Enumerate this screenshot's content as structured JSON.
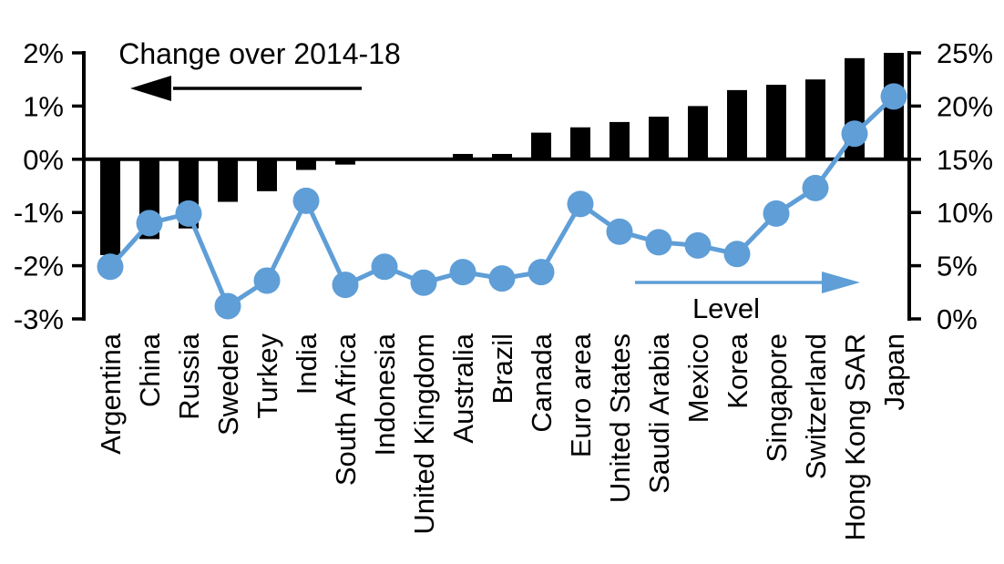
{
  "chart_data": {
    "type": "bar",
    "subtype": "combo-bar-line-dual-axis",
    "background": "#ffffff",
    "categories": [
      "Argentina",
      "China",
      "Russia",
      "Sweden",
      "Turkey",
      "India",
      "South Africa",
      "Indonesia",
      "United Kingdom",
      "Australia",
      "Brazil",
      "Canada",
      "Euro area",
      "United States",
      "Saudi Arabia",
      "Mexico",
      "Korea",
      "Singapore",
      "Switzerland",
      "Hong Kong SAR",
      "Japan"
    ],
    "series": [
      {
        "name": "Change over 2014-18",
        "type": "bar",
        "axis": "left",
        "color": "#000000",
        "values": [
          -1.8,
          -1.5,
          -1.3,
          -0.8,
          -0.6,
          -0.2,
          -0.1,
          0,
          0,
          0.1,
          0.1,
          0.5,
          0.6,
          0.7,
          0.8,
          1.0,
          1.3,
          1.4,
          1.5,
          1.9,
          2.0
        ]
      },
      {
        "name": "Level",
        "type": "line",
        "axis": "right",
        "color": "#5F9ED7",
        "values": [
          4.9,
          9.0,
          9.9,
          1.2,
          3.6,
          11.1,
          3.2,
          4.9,
          3.4,
          4.4,
          3.8,
          4.4,
          10.8,
          8.2,
          7.2,
          6.9,
          6.1,
          9.9,
          12.3,
          17.4,
          20.9
        ]
      }
    ],
    "left_axis": {
      "min": -3,
      "max": 2,
      "unit": "%",
      "ticks": [
        {
          "value": 2,
          "label": "2%"
        },
        {
          "value": 1,
          "label": "1%"
        },
        {
          "value": 0,
          "label": "0%"
        },
        {
          "value": -1,
          "label": "-1%"
        },
        {
          "value": -2,
          "label": "-2%"
        },
        {
          "value": -3,
          "label": "-3%"
        }
      ]
    },
    "right_axis": {
      "min": 0,
      "max": 25,
      "unit": "%",
      "ticks": [
        {
          "value": 25,
          "label": "25%"
        },
        {
          "value": 20,
          "label": "20%"
        },
        {
          "value": 15,
          "label": "15%"
        },
        {
          "value": 10,
          "label": "10%"
        },
        {
          "value": 5,
          "label": "5%"
        },
        {
          "value": 0,
          "label": "0%"
        }
      ]
    },
    "grid": "off",
    "legend_position": "in-plot-annotations",
    "annotations": [
      {
        "text": "Change over 2014-18",
        "arrow_direction": "left",
        "color": "#000000"
      },
      {
        "text": "Level",
        "arrow_direction": "right",
        "color": "#5F9ED7"
      }
    ]
  }
}
